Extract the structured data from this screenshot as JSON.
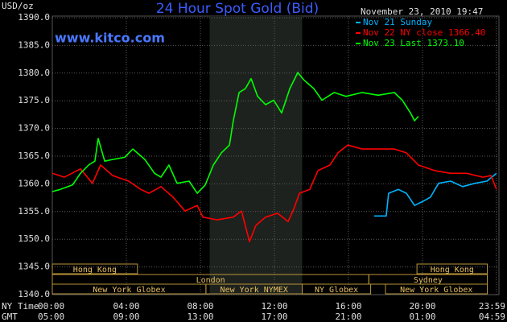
{
  "chart_data": {
    "type": "line",
    "title": "24 Hour Spot Gold (Bid)",
    "watermark": "www.kitco.com",
    "y_label": "USD/oz",
    "timestamp": "November 23, 2010 19:47",
    "x_label": "NY Time",
    "x2_label": "GMT",
    "xlim": [
      0,
      24
    ],
    "xticks": [
      {
        "value": 0,
        "label": "00:00"
      },
      {
        "value": 4,
        "label": "04:00"
      },
      {
        "value": 8,
        "label": "08:00"
      },
      {
        "value": 12,
        "label": "12:00"
      },
      {
        "value": 16,
        "label": "16:00"
      },
      {
        "value": 20,
        "label": "20:00"
      },
      {
        "value": 23.98,
        "label": "23:59"
      }
    ],
    "x2tick_labels": [
      "05:00",
      "09:00",
      "13:00",
      "17:00",
      "21:00",
      "01:00",
      "04:59"
    ],
    "ylim": [
      1340,
      1390
    ],
    "yticks": [
      {
        "value": 1340,
        "label": "1340.0"
      },
      {
        "value": 1345,
        "label": "1345.0"
      },
      {
        "value": 1350,
        "label": "1350.0"
      },
      {
        "value": 1355,
        "label": "1355.0"
      },
      {
        "value": 1360,
        "label": "1360.0"
      },
      {
        "value": 1365,
        "label": "1365.0"
      },
      {
        "value": 1370,
        "label": "1370.0"
      },
      {
        "value": 1375,
        "label": "1375.0"
      },
      {
        "value": 1380,
        "label": "1380.0"
      },
      {
        "value": 1385,
        "label": "1385.0"
      },
      {
        "value": 1390,
        "label": "1390.0"
      }
    ],
    "grid": true,
    "legend": "top-right",
    "highlight": [
      8.5,
      13.5
    ],
    "sessions": [
      [
        {
          "label": "Hong Kong",
          "start": 0,
          "end": 4.6
        },
        {
          "label": "Hong Kong",
          "start": 19.7,
          "end": 23.5
        }
      ],
      [
        {
          "label": "London",
          "start": 0,
          "end": 17.1
        },
        {
          "label": "Sydney",
          "start": 17.1,
          "end": 23.5
        }
      ],
      [
        {
          "label": "New York Globex",
          "start": 0,
          "end": 8.3
        },
        {
          "label": "New York NYMEX",
          "start": 8.3,
          "end": 13.5
        },
        {
          "label": "NY Globex",
          "start": 13.5,
          "end": 17.2
        },
        {
          "label": "New York Globex",
          "start": 18.0,
          "end": 23.5
        }
      ]
    ],
    "series": [
      {
        "name": "Nov 21 Sunday",
        "color": "#00b4ff",
        "x": [
          17.39,
          18.04,
          18.17,
          18.7,
          19.13,
          19.57,
          20.0,
          20.43,
          20.87,
          21.52,
          22.17,
          22.83,
          23.48,
          24.0
        ],
        "values": [
          1354.2,
          1354.2,
          1358.3,
          1359.0,
          1358.3,
          1356.1,
          1356.8,
          1357.6,
          1360.1,
          1360.5,
          1359.5,
          1360.1,
          1360.5,
          1361.9
        ]
      },
      {
        "name": "Nov 22 NY close 1366.40",
        "color": "#ff0000",
        "x": [
          0,
          0.65,
          1.52,
          2.17,
          2.61,
          3.26,
          4.13,
          4.78,
          5.22,
          5.87,
          6.52,
          7.17,
          7.83,
          8.13,
          8.91,
          9.78,
          10.22,
          10.65,
          11.0,
          11.52,
          12.17,
          12.74,
          13.04,
          13.35,
          13.91,
          14.35,
          15.0,
          15.43,
          15.96,
          16.74,
          17.61,
          18.48,
          19.13,
          19.78,
          20.65,
          21.52,
          22.39,
          23.26,
          23.7,
          24.0
        ],
        "values": [
          1361.9,
          1361.2,
          1362.7,
          1360.1,
          1363.4,
          1361.5,
          1360.5,
          1359.0,
          1358.3,
          1359.5,
          1357.6,
          1355.1,
          1356.1,
          1354.0,
          1353.5,
          1354.0,
          1355.1,
          1349.6,
          1352.5,
          1354.0,
          1354.7,
          1353.2,
          1355.4,
          1358.3,
          1359.0,
          1362.4,
          1363.4,
          1365.6,
          1367.0,
          1366.3,
          1366.3,
          1366.3,
          1365.6,
          1363.4,
          1362.4,
          1361.9,
          1361.9,
          1361.2,
          1361.5,
          1359.0
        ]
      },
      {
        "name": "Nov 23 Last 1373.10",
        "color": "#00ff00",
        "x": [
          0,
          0.43,
          1.09,
          1.52,
          1.96,
          2.3,
          2.48,
          2.83,
          3.26,
          3.91,
          4.35,
          5.0,
          5.52,
          5.87,
          6.3,
          6.74,
          7.39,
          7.83,
          8.26,
          8.7,
          9.13,
          9.57,
          9.78,
          10.09,
          10.43,
          10.74,
          11.09,
          11.52,
          11.96,
          12.39,
          12.83,
          13.26,
          13.61,
          14.13,
          14.57,
          15.22,
          15.87,
          16.74,
          17.61,
          18.48,
          18.91,
          19.35,
          19.57,
          19.78
        ],
        "values": [
          1358.6,
          1359.0,
          1359.8,
          1361.9,
          1363.4,
          1364.1,
          1368.2,
          1364.1,
          1364.4,
          1364.8,
          1366.3,
          1364.4,
          1361.9,
          1361.2,
          1363.4,
          1360.1,
          1360.5,
          1358.3,
          1359.8,
          1363.4,
          1365.6,
          1367.0,
          1371.4,
          1376.5,
          1377.2,
          1379.0,
          1375.8,
          1374.3,
          1375.1,
          1372.8,
          1377.2,
          1380.1,
          1378.7,
          1377.2,
          1375.1,
          1376.5,
          1375.8,
          1376.5,
          1376.0,
          1376.5,
          1375.1,
          1372.8,
          1371.4,
          1372.2
        ]
      }
    ]
  }
}
